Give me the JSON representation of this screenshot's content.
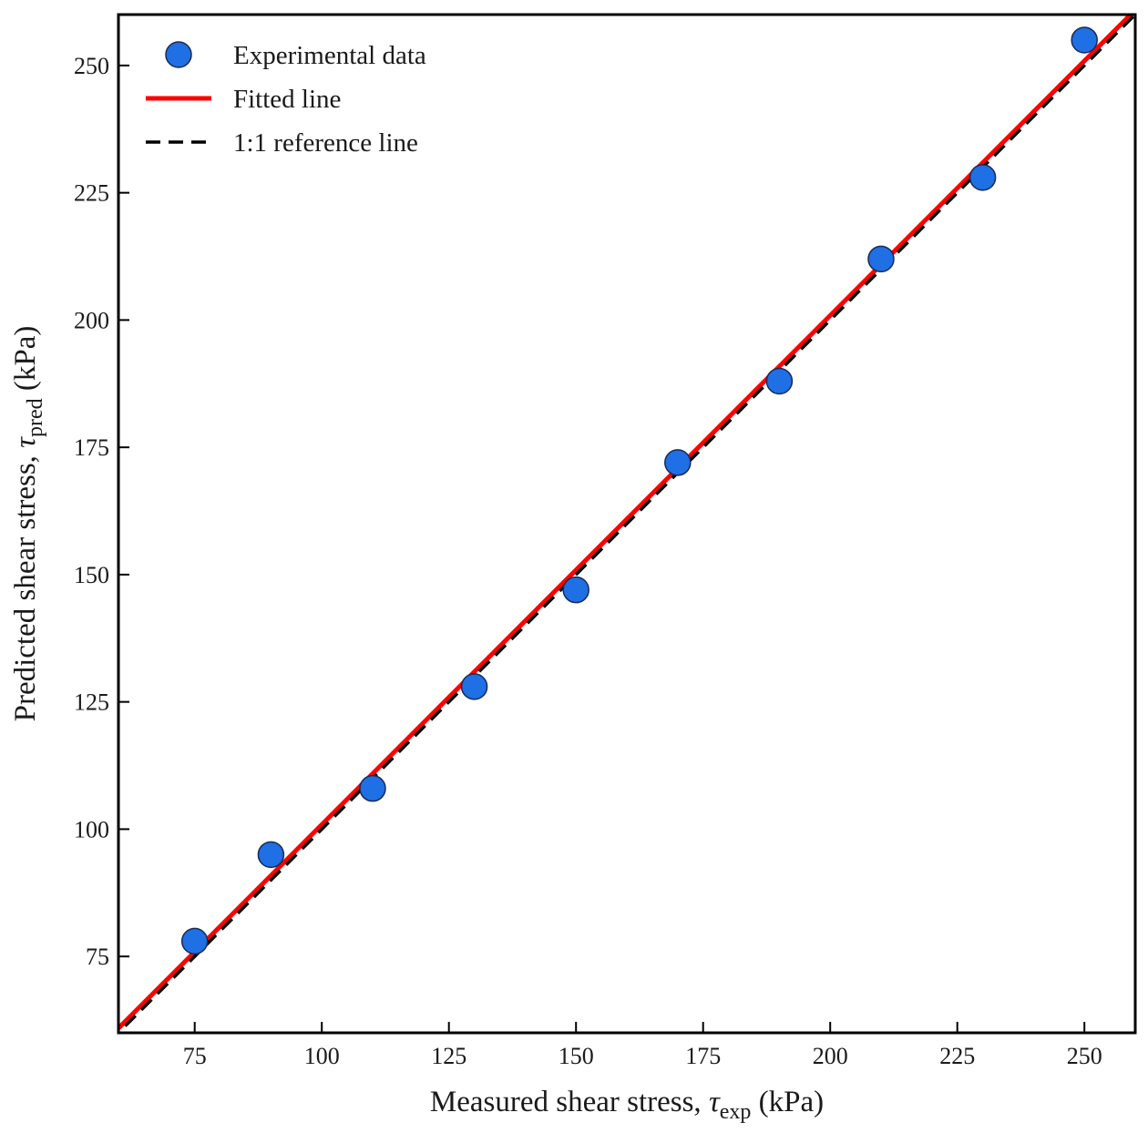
{
  "chart_data": {
    "type": "scatter",
    "xlabel": {
      "prefix": "Measured shear stress, ",
      "symbol": "τ",
      "subscript": "exp",
      "suffix": " (kPa)"
    },
    "ylabel": {
      "prefix": "Predicted shear stress, ",
      "symbol": "τ",
      "subscript": "pred",
      "suffix": " (kPa)"
    },
    "xlim": [
      60,
      260
    ],
    "ylim": [
      60,
      260
    ],
    "xticks": [
      75,
      100,
      125,
      150,
      175,
      200,
      225,
      250
    ],
    "yticks": [
      75,
      100,
      125,
      150,
      175,
      200,
      225,
      250
    ],
    "grid": false,
    "legend_position": "top-left",
    "series": [
      {
        "name": "Experimental data",
        "kind": "scatter",
        "color": "#1f6fe5",
        "x": [
          75,
          90,
          110,
          130,
          150,
          170,
          190,
          210,
          230,
          250
        ],
        "y": [
          78,
          95,
          108,
          128,
          147,
          172,
          188,
          212,
          228,
          255
        ]
      },
      {
        "name": "Fitted line",
        "kind": "line",
        "color": "#ff0000",
        "slope": 1.0,
        "intercept": 0.9
      },
      {
        "name": "1:1 reference line",
        "kind": "dashed-line",
        "color": "#000000",
        "slope": 1.0,
        "intercept": 0
      }
    ]
  }
}
